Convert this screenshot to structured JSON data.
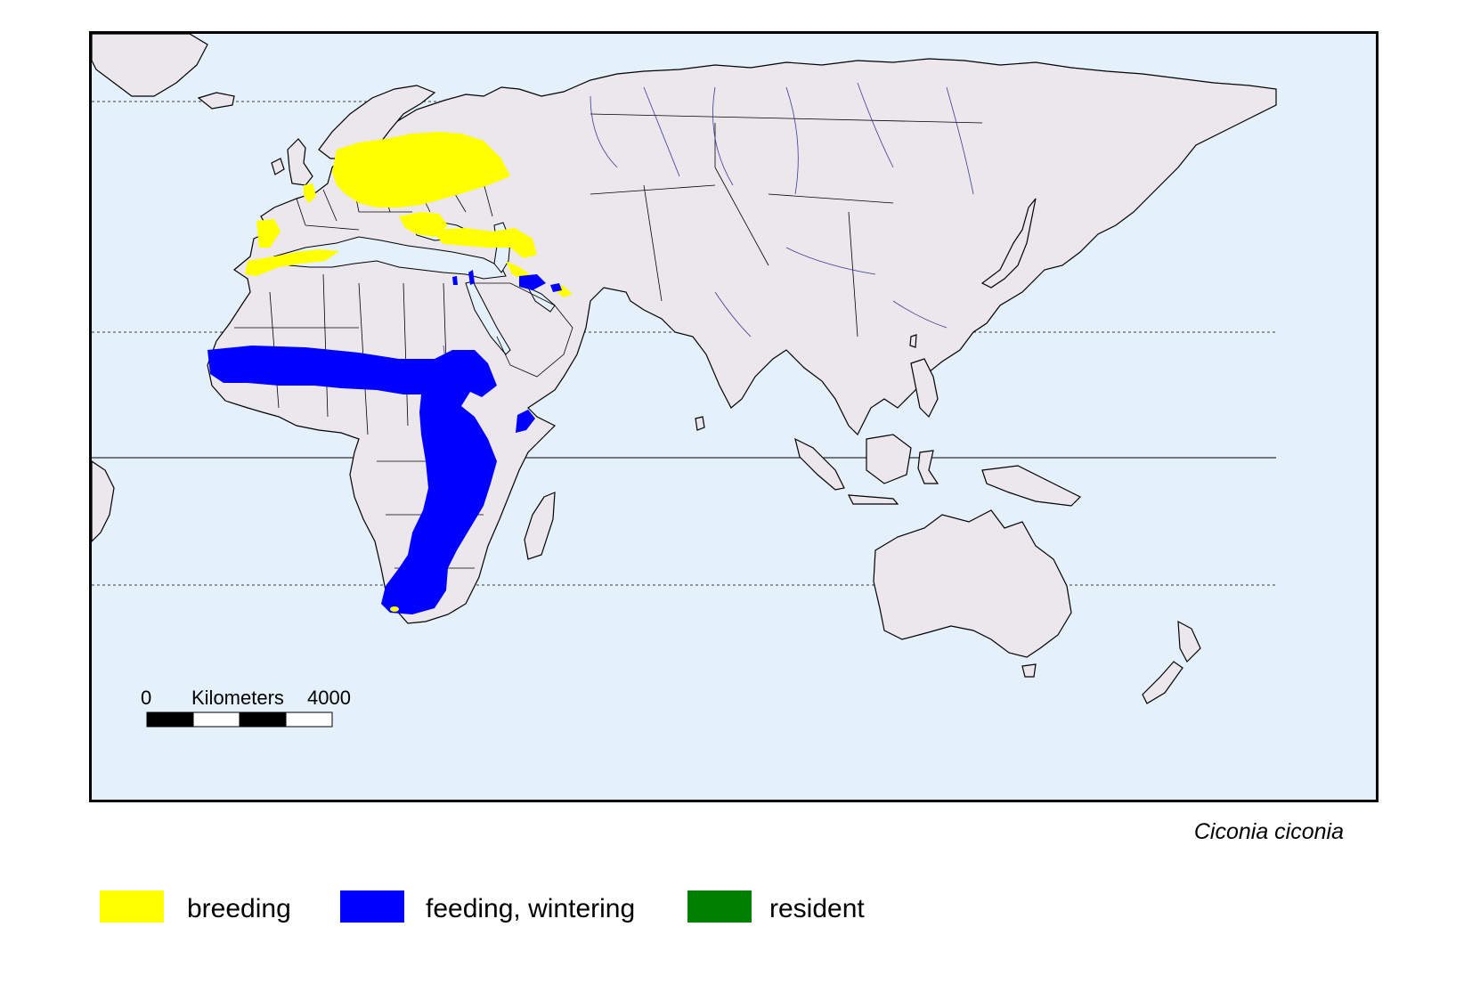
{
  "map": {
    "scale_bar": {
      "label_start": "0",
      "label_unit": "Kilometers",
      "label_end": "4000"
    },
    "colors": {
      "ocean": "#e4f1fb",
      "land": "#ece7ec",
      "breeding": "#ffff00",
      "wintering": "#0000ff",
      "resident": "#008000"
    },
    "lines": [
      "Arctic Circle (dashed)",
      "Tropic of Cancer (dashed)",
      "Equator (solid)",
      "Tropic of Capricorn (dashed)"
    ]
  },
  "species_name": "Ciconia ciconia",
  "legend": [
    {
      "label": "breeding",
      "color": "#ffff00"
    },
    {
      "label": "feeding, wintering",
      "color": "#0000ff"
    },
    {
      "label": "resident",
      "color": "#008000"
    }
  ]
}
